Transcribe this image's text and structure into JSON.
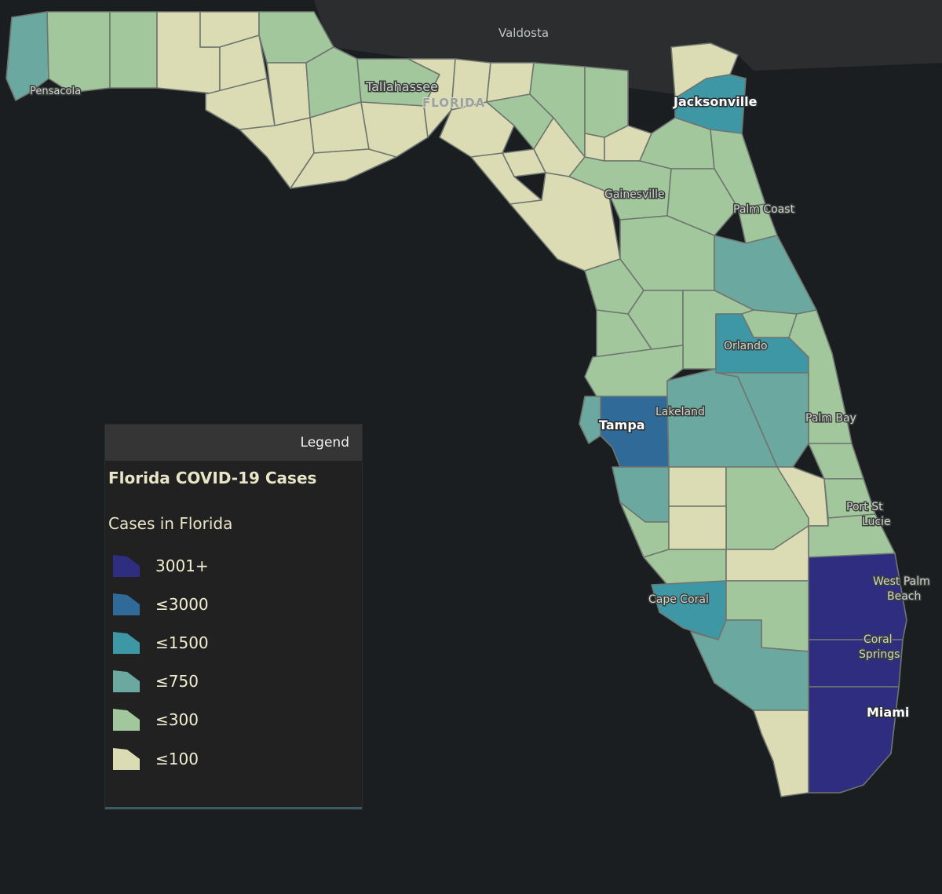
{
  "map": {
    "cities": {
      "valdosta": "Valdosta",
      "pensacola": "Pensacola",
      "tallahassee": "Tallahassee",
      "state": "FLORIDA",
      "jacksonville": "Jacksonville",
      "gainesville": "Gainesville",
      "palm_coast": "Palm Coast",
      "orlando": "Orlando",
      "lakeland": "Lakeland",
      "tampa": "Tampa",
      "palm_bay": "Palm Bay",
      "port_st_lucie_1": "Port St",
      "port_st_lucie_2": "Lucie",
      "west_palm_beach_1": "West Palm",
      "west_palm_beach_2": "Beach",
      "coral_springs_1": "Coral",
      "coral_springs_2": "Springs",
      "cape_coral": "Cape Coral",
      "miami": "Miami"
    },
    "colors": {
      "ocean": "#1b1e21",
      "land_outside": "#2b2d2f",
      "c3001": "#2e2d80",
      "c3000": "#2f6a98",
      "c1500": "#3e97a5",
      "c750": "#6aa8a0",
      "c300": "#a3c79c",
      "c100": "#dcdcb4"
    }
  },
  "legend": {
    "header": "Legend",
    "title": "Florida COVID-19 Cases",
    "subtitle": "Cases in Florida",
    "items": [
      {
        "label": "3001+",
        "color": "#2e2d80"
      },
      {
        "label": "≤3000",
        "color": "#2f6a98"
      },
      {
        "label": "≤1500",
        "color": "#3e97a5"
      },
      {
        "label": "≤750",
        "color": "#6aa8a0"
      },
      {
        "label": "≤300",
        "color": "#a3c79c"
      },
      {
        "label": "≤100",
        "color": "#dcdcb4"
      }
    ]
  }
}
